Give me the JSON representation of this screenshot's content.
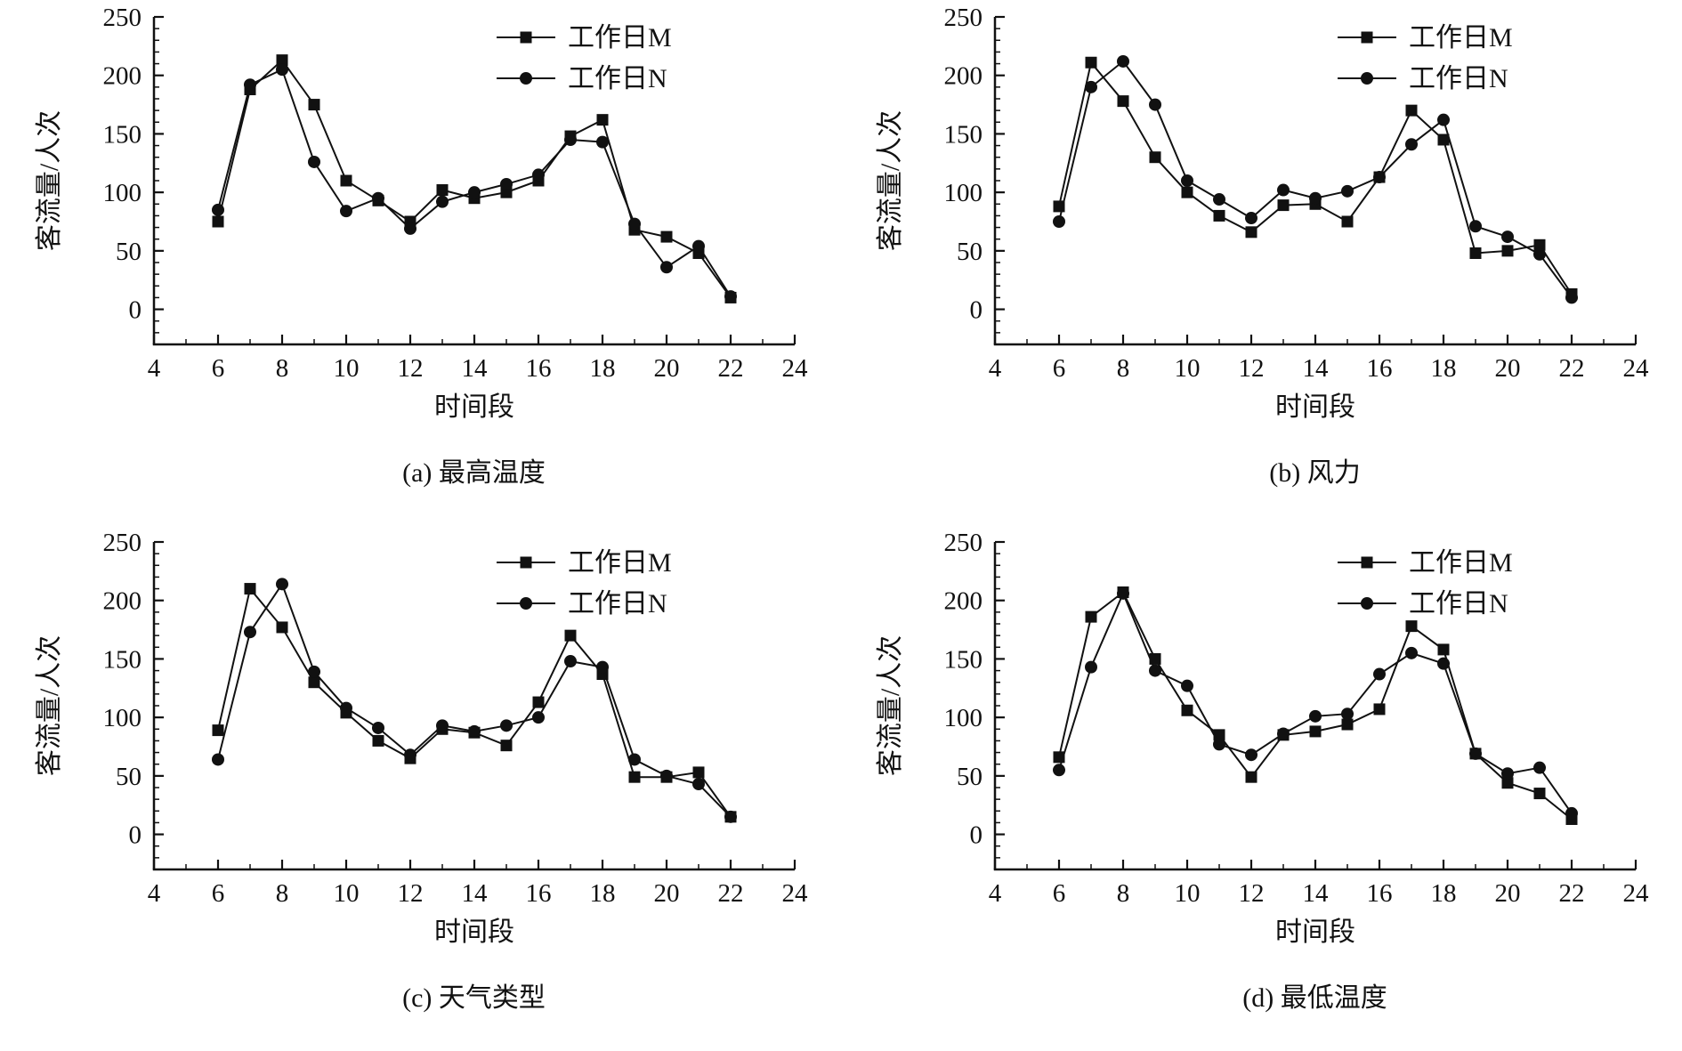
{
  "page": {
    "background": "#ffffff",
    "line_color": "#111111"
  },
  "chart_data": [
    {
      "type": "line",
      "caption": "(a) 最高温度",
      "xlabel": "时间段",
      "ylabel": "客流量/人次",
      "xlim": [
        4,
        24
      ],
      "ylim": [
        0,
        250
      ],
      "x_ticks": [
        4,
        6,
        8,
        10,
        12,
        14,
        16,
        18,
        20,
        22,
        24
      ],
      "y_ticks": [
        0,
        50,
        100,
        150,
        200,
        250
      ],
      "legend_position": "top-right",
      "grid": false,
      "x": [
        6,
        7,
        8,
        9,
        10,
        11,
        12,
        13,
        14,
        15,
        16,
        17,
        18,
        19,
        20,
        21,
        22
      ],
      "series": [
        {
          "name": "工作日M",
          "marker": "square",
          "values": [
            75,
            188,
            213,
            175,
            110,
            93,
            75,
            102,
            95,
            100,
            110,
            148,
            162,
            68,
            62,
            48,
            10
          ]
        },
        {
          "name": "工作日N",
          "marker": "circle",
          "values": [
            85,
            192,
            205,
            126,
            84,
            95,
            69,
            92,
            100,
            107,
            115,
            145,
            143,
            73,
            36,
            54,
            11
          ]
        }
      ]
    },
    {
      "type": "line",
      "caption": "(b) 风力",
      "xlabel": "时间段",
      "ylabel": "客流量/人次",
      "xlim": [
        4,
        24
      ],
      "ylim": [
        0,
        250
      ],
      "x_ticks": [
        4,
        6,
        8,
        10,
        12,
        14,
        16,
        18,
        20,
        22,
        24
      ],
      "y_ticks": [
        0,
        50,
        100,
        150,
        200,
        250
      ],
      "legend_position": "top-right",
      "grid": false,
      "x": [
        6,
        7,
        8,
        9,
        10,
        11,
        12,
        13,
        14,
        15,
        16,
        17,
        18,
        19,
        20,
        21,
        22
      ],
      "series": [
        {
          "name": "工作日M",
          "marker": "square",
          "values": [
            88,
            211,
            178,
            130,
            100,
            80,
            66,
            89,
            90,
            75,
            113,
            170,
            145,
            48,
            50,
            55,
            13
          ]
        },
        {
          "name": "工作日N",
          "marker": "circle",
          "values": [
            75,
            190,
            212,
            175,
            110,
            94,
            78,
            102,
            95,
            101,
            113,
            141,
            162,
            71,
            62,
            47,
            10
          ]
        }
      ]
    },
    {
      "type": "line",
      "caption": "(c) 天气类型",
      "xlabel": "时间段",
      "ylabel": "客流量/人次",
      "xlim": [
        4,
        24
      ],
      "ylim": [
        0,
        250
      ],
      "x_ticks": [
        4,
        6,
        8,
        10,
        12,
        14,
        16,
        18,
        20,
        22,
        24
      ],
      "y_ticks": [
        0,
        50,
        100,
        150,
        200,
        250
      ],
      "legend_position": "top-right",
      "grid": false,
      "x": [
        6,
        7,
        8,
        9,
        10,
        11,
        12,
        13,
        14,
        15,
        16,
        17,
        18,
        19,
        20,
        21,
        22
      ],
      "series": [
        {
          "name": "工作日M",
          "marker": "square",
          "values": [
            89,
            210,
            177,
            130,
            104,
            80,
            65,
            90,
            87,
            76,
            113,
            170,
            137,
            49,
            49,
            53,
            15
          ]
        },
        {
          "name": "工作日N",
          "marker": "circle",
          "values": [
            64,
            173,
            214,
            139,
            108,
            91,
            68,
            93,
            88,
            93,
            100,
            148,
            143,
            64,
            50,
            43,
            15
          ]
        }
      ]
    },
    {
      "type": "line",
      "caption": "(d) 最低温度",
      "xlabel": "时间段",
      "ylabel": "客流量/人次",
      "xlim": [
        4,
        24
      ],
      "ylim": [
        0,
        250
      ],
      "x_ticks": [
        4,
        6,
        8,
        10,
        12,
        14,
        16,
        18,
        20,
        22,
        24
      ],
      "y_ticks": [
        0,
        50,
        100,
        150,
        200,
        250
      ],
      "legend_position": "top-right",
      "grid": false,
      "x": [
        6,
        7,
        8,
        9,
        10,
        11,
        12,
        13,
        14,
        15,
        16,
        17,
        18,
        19,
        20,
        21,
        22
      ],
      "series": [
        {
          "name": "工作日M",
          "marker": "square",
          "values": [
            66,
            186,
            207,
            150,
            106,
            85,
            49,
            85,
            88,
            94,
            107,
            178,
            158,
            69,
            44,
            35,
            13
          ]
        },
        {
          "name": "工作日N",
          "marker": "circle",
          "values": [
            55,
            143,
            206,
            140,
            127,
            77,
            68,
            86,
            101,
            103,
            137,
            155,
            146,
            69,
            52,
            57,
            18
          ]
        }
      ]
    }
  ]
}
